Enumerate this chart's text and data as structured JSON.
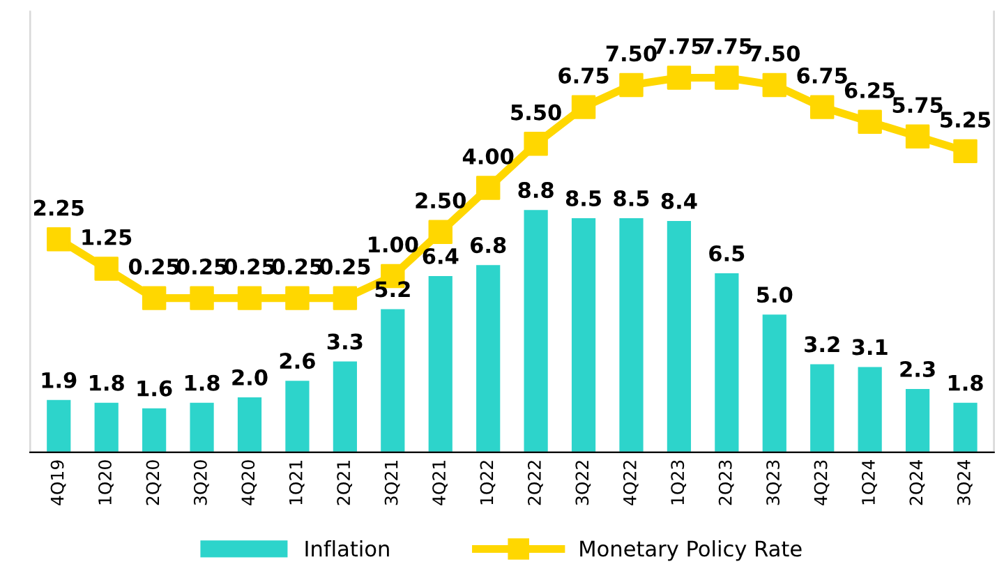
{
  "chart_data": {
    "type": "bar",
    "categories": [
      "4Q19",
      "1Q20",
      "2Q20",
      "3Q20",
      "4Q20",
      "1Q21",
      "2Q21",
      "3Q21",
      "4Q21",
      "1Q22",
      "2Q22",
      "3Q22",
      "4Q22",
      "1Q23",
      "2Q23",
      "3Q23",
      "4Q23",
      "1Q24",
      "2Q24",
      "3Q24"
    ],
    "series": [
      {
        "name": "Inflation",
        "color": "#2dd4cb",
        "values": [
          1.9,
          1.8,
          1.6,
          1.8,
          2.0,
          2.6,
          3.3,
          5.2,
          6.4,
          6.8,
          8.8,
          8.5,
          8.5,
          8.4,
          6.5,
          5.0,
          3.2,
          3.1,
          2.3,
          1.8
        ],
        "value_labels": [
          "1.9",
          "1.8",
          "1.6",
          "1.8",
          "2.0",
          "2.6",
          "3.3",
          "5.2",
          "6.4",
          "6.8",
          "8.8",
          "8.5",
          "8.5",
          "8.4",
          "6.5",
          "5.0",
          "3.2",
          "3.1",
          "2.3",
          "1.8"
        ]
      },
      {
        "name": "Monetary Policy Rate",
        "type": "line",
        "axis": "y2",
        "color": "#ffd700",
        "values": [
          2.25,
          1.25,
          0.25,
          0.25,
          0.25,
          0.25,
          0.25,
          1.0,
          2.5,
          4.0,
          5.5,
          6.75,
          7.5,
          7.75,
          7.75,
          7.5,
          6.75,
          6.25,
          5.75,
          5.25
        ],
        "value_labels": [
          "2.25",
          "1.25",
          "0.25",
          "0.25",
          "0.25",
          "0.25",
          "0.25",
          "1.00",
          "2.50",
          "4.00",
          "5.50",
          "6.75",
          "7.50",
          "7.75",
          "7.75",
          "7.50",
          "6.75",
          "6.25",
          "5.75",
          "5.25"
        ]
      }
    ],
    "ylim": [
      0,
      16
    ],
    "y2lim": [
      -5,
      10
    ],
    "tick_labels": "x",
    "marker": "square",
    "line_style": "solid",
    "legend": "bottom",
    "grid": false
  }
}
